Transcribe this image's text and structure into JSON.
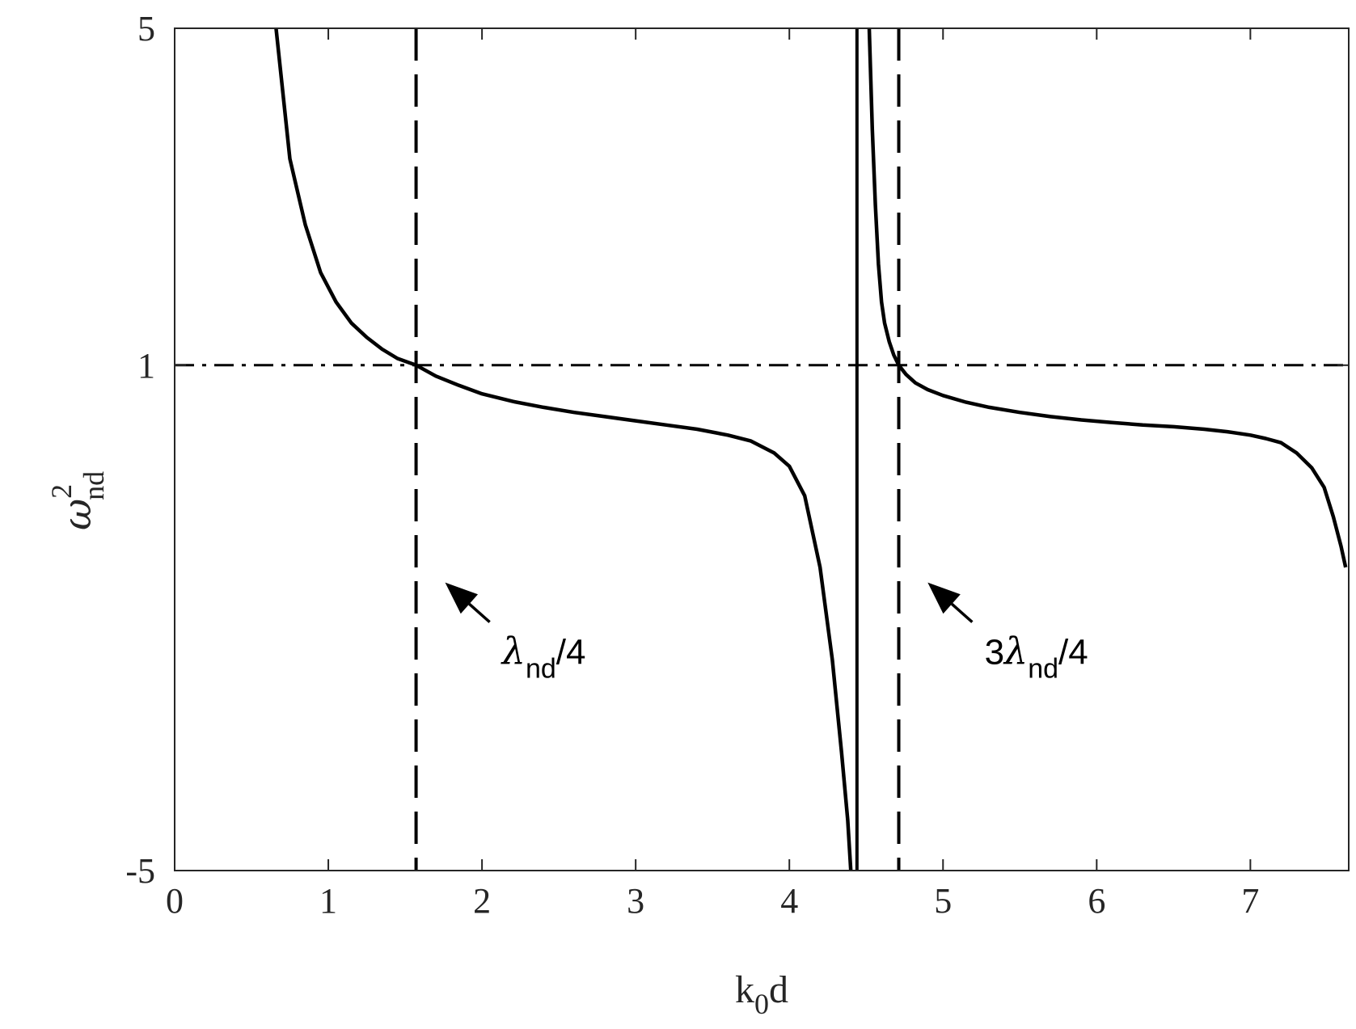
{
  "chart_data": {
    "type": "line",
    "xlabel": {
      "main": "k",
      "sub": "0",
      "tail": "d"
    },
    "ylabel": {
      "main": "ω",
      "sup": "2",
      "sub": "nd"
    },
    "xlim": [
      0,
      7.64
    ],
    "ylim": [
      -5,
      5
    ],
    "x_ticks": [
      0,
      1,
      2,
      3,
      4,
      5,
      6,
      7
    ],
    "y_ticks": [
      -5,
      1,
      5
    ],
    "x_tick_labels": [
      "0",
      "1",
      "2",
      "3",
      "4",
      "5",
      "6",
      "7"
    ],
    "y_tick_labels": [
      "-5",
      "1",
      "5"
    ],
    "y_scale_note": "nonlinear axis: ticks -5, 1, 5 at fractional heights 0, 0.6, 1",
    "curve": {
      "style": "solid",
      "branches": [
        {
          "x": [
            0.66,
            0.75,
            0.85,
            0.95,
            1.05,
            1.15,
            1.25,
            1.35,
            1.45,
            1.571,
            1.7,
            1.85,
            2.0,
            2.2,
            2.4,
            2.6,
            2.8,
            3.0,
            3.2,
            3.4,
            3.6,
            3.75,
            3.9,
            4.0,
            4.1,
            4.2,
            4.28,
            4.34,
            4.38,
            4.4
          ],
          "y": [
            5,
            3.45,
            2.67,
            2.1,
            1.75,
            1.5,
            1.33,
            1.19,
            1.08,
            1.0,
            0.87,
            0.76,
            0.66,
            0.57,
            0.5,
            0.44,
            0.39,
            0.34,
            0.29,
            0.24,
            0.17,
            0.1,
            -0.04,
            -0.2,
            -0.55,
            -1.4,
            -2.5,
            -3.6,
            -4.4,
            -5
          ]
        },
        {
          "x": [
            4.52,
            4.54,
            4.56,
            4.58,
            4.6,
            4.62,
            4.65,
            4.68,
            4.712,
            4.76,
            4.82,
            4.9,
            5.0,
            5.15,
            5.3,
            5.5,
            5.7,
            5.9,
            6.1,
            6.3,
            6.5,
            6.7,
            6.85,
            7.0,
            7.1,
            7.2,
            7.3,
            7.4,
            7.48,
            7.54,
            7.59,
            7.62
          ],
          "y": [
            5,
            3.8,
            2.9,
            2.2,
            1.75,
            1.5,
            1.28,
            1.12,
            1.0,
            0.89,
            0.79,
            0.71,
            0.64,
            0.56,
            0.5,
            0.44,
            0.39,
            0.35,
            0.32,
            0.29,
            0.27,
            0.24,
            0.21,
            0.17,
            0.13,
            0.08,
            -0.04,
            -0.22,
            -0.45,
            -0.8,
            -1.15,
            -1.4
          ]
        }
      ]
    },
    "reference_lines": [
      {
        "orientation": "vertical",
        "x": 1.571,
        "style": "dashed"
      },
      {
        "orientation": "vertical",
        "x": 4.44,
        "style": "solid"
      },
      {
        "orientation": "vertical",
        "x": 4.712,
        "style": "dashed"
      },
      {
        "orientation": "horizontal",
        "y": 1,
        "style": "dashdot"
      }
    ],
    "annotations": [
      {
        "text_parts": {
          "pre": "",
          "main": "λ",
          "sub": "nd",
          "tail": "/4"
        },
        "arrow_to": {
          "x": 1.76,
          "y": -1.58
        },
        "arrow_from": {
          "x": 2.05,
          "y": -2.05
        },
        "text_at": {
          "x": 2.13,
          "y": -2.55
        }
      },
      {
        "text_parts": {
          "pre": "3",
          "main": "λ",
          "sub": "nd",
          "tail": "/4"
        },
        "arrow_to": {
          "x": 4.9,
          "y": -1.58
        },
        "arrow_from": {
          "x": 5.19,
          "y": -2.05
        },
        "text_at": {
          "x": 5.27,
          "y": -2.55
        }
      }
    ]
  }
}
